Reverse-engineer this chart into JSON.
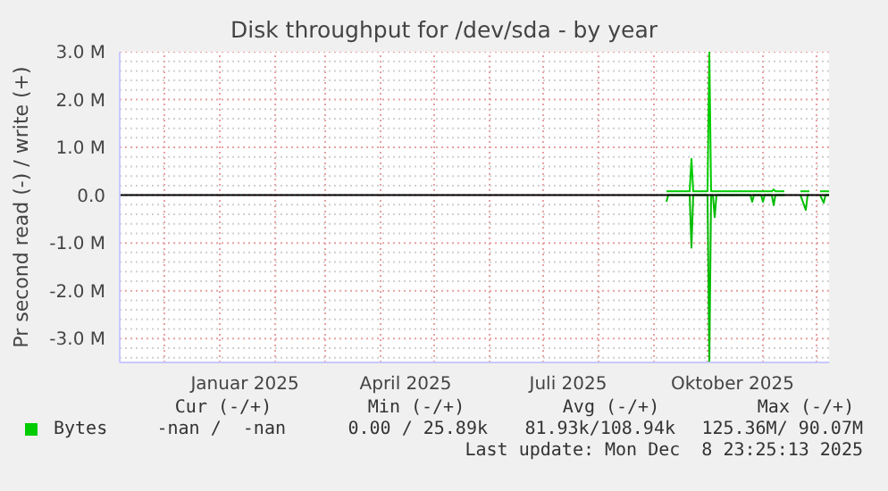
{
  "chart_data": {
    "type": "line",
    "title": "Disk throughput for /dev/sda - by year",
    "ylabel": "Pr second read (-) / write (+)",
    "xlim": [
      "2024-11-06",
      "2025-12-08"
    ],
    "xticks": [
      {
        "value": "2024-12-01",
        "label": null
      },
      {
        "value": "2025-01-01",
        "label": null
      },
      {
        "value": "2025-01-15",
        "label": "Januar 2025"
      },
      {
        "value": "2025-02-01",
        "label": null
      },
      {
        "value": "2025-03-01",
        "label": null
      },
      {
        "value": "2025-04-01",
        "label": null
      },
      {
        "value": "2025-04-15",
        "label": "April 2025"
      },
      {
        "value": "2025-05-01",
        "label": null
      },
      {
        "value": "2025-06-01",
        "label": null
      },
      {
        "value": "2025-07-01",
        "label": null
      },
      {
        "value": "2025-07-15",
        "label": "Juli 2025"
      },
      {
        "value": "2025-08-01",
        "label": null
      },
      {
        "value": "2025-09-01",
        "label": null
      },
      {
        "value": "2025-10-01",
        "label": null
      },
      {
        "value": "2025-10-15",
        "label": "Oktober 2025"
      },
      {
        "value": "2025-11-01",
        "label": null
      },
      {
        "value": "2025-12-01",
        "label": null
      }
    ],
    "ylim": [
      -3500000,
      3000000
    ],
    "yticks": [
      {
        "value": -3400000,
        "label": null
      },
      {
        "value": -3200000,
        "label": null
      },
      {
        "value": -3000000,
        "label": "-3.0 M"
      },
      {
        "value": -2800000,
        "label": null
      },
      {
        "value": -2600000,
        "label": null
      },
      {
        "value": -2400000,
        "label": null
      },
      {
        "value": -2200000,
        "label": null
      },
      {
        "value": -2000000,
        "label": "-2.0 M"
      },
      {
        "value": -1800000,
        "label": null
      },
      {
        "value": -1600000,
        "label": null
      },
      {
        "value": -1400000,
        "label": null
      },
      {
        "value": -1200000,
        "label": null
      },
      {
        "value": -1000000,
        "label": "-1.0 M"
      },
      {
        "value": -800000,
        "label": null
      },
      {
        "value": -600000,
        "label": null
      },
      {
        "value": -400000,
        "label": null
      },
      {
        "value": -200000,
        "label": null
      },
      {
        "value": 0,
        "label": "0.0"
      },
      {
        "value": 200000,
        "label": null
      },
      {
        "value": 400000,
        "label": null
      },
      {
        "value": 600000,
        "label": null
      },
      {
        "value": 800000,
        "label": null
      },
      {
        "value": 1000000,
        "label": "1.0 M"
      },
      {
        "value": 1200000,
        "label": null
      },
      {
        "value": 1400000,
        "label": null
      },
      {
        "value": 1600000,
        "label": null
      },
      {
        "value": 1800000,
        "label": null
      },
      {
        "value": 2000000,
        "label": "2.0 M"
      },
      {
        "value": 2200000,
        "label": null
      },
      {
        "value": 2400000,
        "label": null
      },
      {
        "value": 2600000,
        "label": null
      },
      {
        "value": 2800000,
        "label": null
      },
      {
        "value": 3000000,
        "label": "3.0 M"
      }
    ],
    "grid": true,
    "legend": "bottom left",
    "marker": "none",
    "line_style": "solid",
    "ref_lines": [
      {
        "axis": "y",
        "value": 0,
        "color": "#000000"
      }
    ],
    "series": [
      {
        "name": "Bytes",
        "color": "#00cc00",
        "x": [
          "2025-09-08",
          "2025-09-21",
          "2025-09-22",
          "2025-09-23",
          "2025-10-01",
          "2025-10-02",
          "2025-10-03",
          "2025-11-06",
          "2025-11-07",
          "2025-11-08",
          "2025-11-13",
          "2025-11-14",
          "2025-11-22",
          "2025-11-27",
          "2025-11-28",
          "2025-12-03",
          "2025-12-08"
        ],
        "values": [
          80000,
          80000,
          760000,
          80000,
          80000,
          3000000,
          80000,
          80000,
          120000,
          80000,
          80000,
          null,
          80000,
          80000,
          null,
          80000,
          80000
        ]
      },
      {
        "color": "#00bb00",
        "x": [
          "2025-09-08",
          "2025-09-09",
          "2025-09-21",
          "2025-09-22",
          "2025-09-23",
          "2025-10-01",
          "2025-10-02",
          "2025-10-03",
          "2025-10-04",
          "2025-10-05",
          "2025-10-06",
          "2025-10-25",
          "2025-10-26",
          "2025-10-27",
          "2025-10-31",
          "2025-11-01",
          "2025-11-02",
          "2025-11-06",
          "2025-11-07",
          "2025-11-08",
          "2025-11-13",
          "2025-11-14",
          "2025-11-22",
          "2025-11-25",
          "2025-11-26",
          "2025-11-27",
          "2025-11-28",
          "2025-12-03",
          "2025-12-05",
          "2025-12-06",
          "2025-12-08"
        ],
        "values": [
          -140000,
          0,
          0,
          -1100000,
          0,
          0,
          -3500000,
          0,
          0,
          -460000,
          0,
          0,
          -140000,
          0,
          0,
          -140000,
          0,
          0,
          -210000,
          0,
          0,
          null,
          0,
          -310000,
          0,
          0,
          null,
          0,
          -160000,
          0,
          0
        ]
      }
    ],
    "annotations": [
      "Cur (-/+)",
      "Min (-/+)",
      "Avg (-/+)",
      "Max (-/+)",
      "-nan /  -nan",
      "0.00 / 25.89k",
      "81.93k/108.94k",
      "125.36M/ 90.07M",
      "Last update: Mon Dec  8 23:25:13 2025"
    ]
  }
}
